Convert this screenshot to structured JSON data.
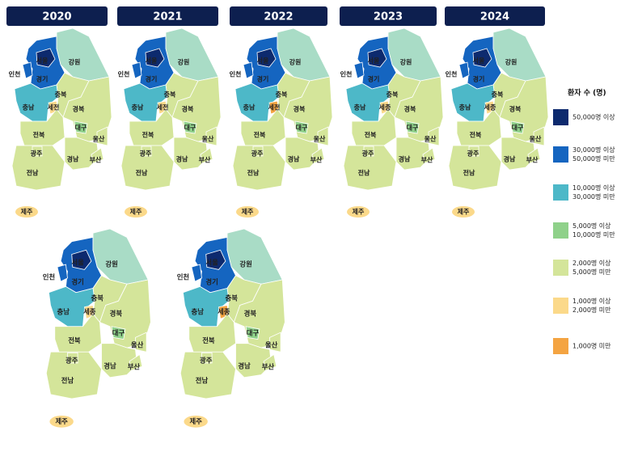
{
  "maps": [
    {
      "year": "2020",
      "regions": [
        {
          "name": "경기",
          "color": "#1565c0"
        },
        {
          "name": "서울",
          "color": "#0d2a6e"
        },
        {
          "name": "인천",
          "color": "#1565c0"
        },
        {
          "name": "강원",
          "color": "#a9dcc6"
        },
        {
          "name": "충북",
          "color": "#d4e59a"
        },
        {
          "name": "충남",
          "color": "#4db8c8"
        },
        {
          "name": "세전",
          "color": "#fbd98a"
        },
        {
          "name": "경북",
          "color": "#d4e59a"
        },
        {
          "name": "대구",
          "color": "#8fd18a"
        },
        {
          "name": "울산",
          "color": "#d4e59a"
        },
        {
          "name": "전북",
          "color": "#d4e59a"
        },
        {
          "name": "전남",
          "color": "#d4e59a"
        },
        {
          "name": "광주",
          "color": "#d4e59a"
        },
        {
          "name": "경남",
          "color": "#d4e59a"
        },
        {
          "name": "부산",
          "color": "#d4e59a"
        },
        {
          "name": "제주",
          "color": "#fbd98a"
        }
      ]
    },
    {
      "year": "2021",
      "regions": [
        {
          "name": "경기",
          "color": "#1565c0"
        },
        {
          "name": "서울",
          "color": "#0d2a6e"
        },
        {
          "name": "인천",
          "color": "#1565c0"
        },
        {
          "name": "강원",
          "color": "#a9dcc6"
        },
        {
          "name": "충북",
          "color": "#d4e59a"
        },
        {
          "name": "충남",
          "color": "#4db8c8"
        },
        {
          "name": "세전",
          "color": "#fbd98a"
        },
        {
          "name": "경북",
          "color": "#d4e59a"
        },
        {
          "name": "대구",
          "color": "#8fd18a"
        },
        {
          "name": "울산",
          "color": "#d4e59a"
        },
        {
          "name": "전북",
          "color": "#d4e59a"
        },
        {
          "name": "전남",
          "color": "#d4e59a"
        },
        {
          "name": "광주",
          "color": "#d4e59a"
        },
        {
          "name": "경남",
          "color": "#d4e59a"
        },
        {
          "name": "부산",
          "color": "#d4e59a"
        },
        {
          "name": "제주",
          "color": "#fbd98a"
        }
      ]
    },
    {
      "year": "2022",
      "regions": [
        {
          "name": "경기",
          "color": "#1565c0"
        },
        {
          "name": "서울",
          "color": "#0d2a6e"
        },
        {
          "name": "인천",
          "color": "#1565c0"
        },
        {
          "name": "강원",
          "color": "#a9dcc6"
        },
        {
          "name": "충북",
          "color": "#d4e59a"
        },
        {
          "name": "충남",
          "color": "#4db8c8"
        },
        {
          "name": "세전",
          "color": "#f4a442"
        },
        {
          "name": "경북",
          "color": "#d4e59a"
        },
        {
          "name": "대구",
          "color": "#8fd18a"
        },
        {
          "name": "울산",
          "color": "#d4e59a"
        },
        {
          "name": "전북",
          "color": "#d4e59a"
        },
        {
          "name": "전남",
          "color": "#d4e59a"
        },
        {
          "name": "광주",
          "color": "#d4e59a"
        },
        {
          "name": "경남",
          "color": "#d4e59a"
        },
        {
          "name": "부산",
          "color": "#d4e59a"
        },
        {
          "name": "제주",
          "color": "#fbd98a"
        }
      ]
    },
    {
      "year": "2023",
      "regions": [
        {
          "name": "경기",
          "color": "#1565c0"
        },
        {
          "name": "서울",
          "color": "#0d2a6e"
        },
        {
          "name": "인천",
          "color": "#1565c0"
        },
        {
          "name": "강원",
          "color": "#a9dcc6"
        },
        {
          "name": "충북",
          "color": "#d4e59a"
        },
        {
          "name": "충남",
          "color": "#4db8c8"
        },
        {
          "name": "세종",
          "color": "#fbd98a"
        },
        {
          "name": "경북",
          "color": "#d4e59a"
        },
        {
          "name": "대구",
          "color": "#8fd18a"
        },
        {
          "name": "울산",
          "color": "#d4e59a"
        },
        {
          "name": "전북",
          "color": "#d4e59a"
        },
        {
          "name": "전남",
          "color": "#d4e59a"
        },
        {
          "name": "광주",
          "color": "#d4e59a"
        },
        {
          "name": "경남",
          "color": "#d4e59a"
        },
        {
          "name": "부산",
          "color": "#d4e59a"
        },
        {
          "name": "제주",
          "color": "#fbd98a"
        }
      ]
    },
    {
      "year": "2024",
      "regions": [
        {
          "name": "경기",
          "color": "#1565c0"
        },
        {
          "name": "서울",
          "color": "#0d2a6e"
        },
        {
          "name": "인천",
          "color": "#1565c0"
        },
        {
          "name": "강원",
          "color": "#a9dcc6"
        },
        {
          "name": "충북",
          "color": "#d4e59a"
        },
        {
          "name": "충남",
          "color": "#4db8c8"
        },
        {
          "name": "세종",
          "color": "#fbd98a"
        },
        {
          "name": "경북",
          "color": "#d4e59a"
        },
        {
          "name": "대구",
          "color": "#8fd18a"
        },
        {
          "name": "울산",
          "color": "#d4e59a"
        },
        {
          "name": "전북",
          "color": "#d4e59a"
        },
        {
          "name": "전남",
          "color": "#d4e59a"
        },
        {
          "name": "광주",
          "color": "#d4e59a"
        },
        {
          "name": "경남",
          "color": "#d4e59a"
        },
        {
          "name": "부산",
          "color": "#d4e59a"
        },
        {
          "name": "제주",
          "color": "#fbd98a"
        }
      ]
    },
    {
      "regions": [
        {
          "name": "경기",
          "color": "#1565c0"
        },
        {
          "name": "서울",
          "color": "#0d2a6e"
        },
        {
          "name": "인천",
          "color": "#1565c0"
        },
        {
          "name": "강원",
          "color": "#a9dcc6"
        },
        {
          "name": "충북",
          "color": "#d4e59a"
        },
        {
          "name": "충남",
          "color": "#4db8c8"
        },
        {
          "name": "세종",
          "color": "#fbd98a"
        },
        {
          "name": "경북",
          "color": "#d4e59a"
        },
        {
          "name": "대구",
          "color": "#8fd18a"
        },
        {
          "name": "울산",
          "color": "#d4e59a"
        },
        {
          "name": "전북",
          "color": "#d4e59a"
        },
        {
          "name": "전남",
          "color": "#d4e59a"
        },
        {
          "name": "광주",
          "color": "#d4e59a"
        },
        {
          "name": "경남",
          "color": "#d4e59a"
        },
        {
          "name": "부산",
          "color": "#d4e59a"
        },
        {
          "name": "제주",
          "color": "#fbd98a"
        }
      ]
    },
    {
      "regions": [
        {
          "name": "경기",
          "color": "#1565c0"
        },
        {
          "name": "서울",
          "color": "#0d2a6e"
        },
        {
          "name": "인천",
          "color": "#1565c0"
        },
        {
          "name": "강원",
          "color": "#a9dcc6"
        },
        {
          "name": "충북",
          "color": "#d4e59a"
        },
        {
          "name": "충남",
          "color": "#4db8c8"
        },
        {
          "name": "세종",
          "color": "#f4a442"
        },
        {
          "name": "경북",
          "color": "#d4e59a"
        },
        {
          "name": "대구",
          "color": "#8fd18a"
        },
        {
          "name": "울산",
          "color": "#d4e59a"
        },
        {
          "name": "전북",
          "color": "#d4e59a"
        },
        {
          "name": "전남",
          "color": "#d4e59a"
        },
        {
          "name": "광주",
          "color": "#d4e59a"
        },
        {
          "name": "경남",
          "color": "#d4e59a"
        },
        {
          "name": "부산",
          "color": "#d4e59a"
        },
        {
          "name": "제주",
          "color": "#fbd98a"
        }
      ]
    }
  ],
  "legend": {
    "title": "환자 수 (명)",
    "items": [
      {
        "lines": [
          "50,000명 이상"
        ],
        "color": "#0d2a6e"
      },
      {
        "lines": [
          "30,000명 이상",
          "50,000명 미만"
        ],
        "color": "#1565c0"
      },
      {
        "lines": [
          "10,000명 이상",
          "30,000명 미만"
        ],
        "color": "#4db8c8"
      },
      {
        "lines": [
          "5,000명 이상",
          "10,000명 미만"
        ],
        "color": "#8fd18a"
      },
      {
        "lines": [
          "2,000명 이상",
          "5,000명 미만"
        ],
        "color": "#d4e59a"
      },
      {
        "lines": [
          "1,000명 이상",
          "2,000명 미만"
        ],
        "color": "#fbd98a"
      },
      {
        "lines": [
          "1,000명 미만"
        ],
        "color": "#f4a442"
      }
    ]
  }
}
